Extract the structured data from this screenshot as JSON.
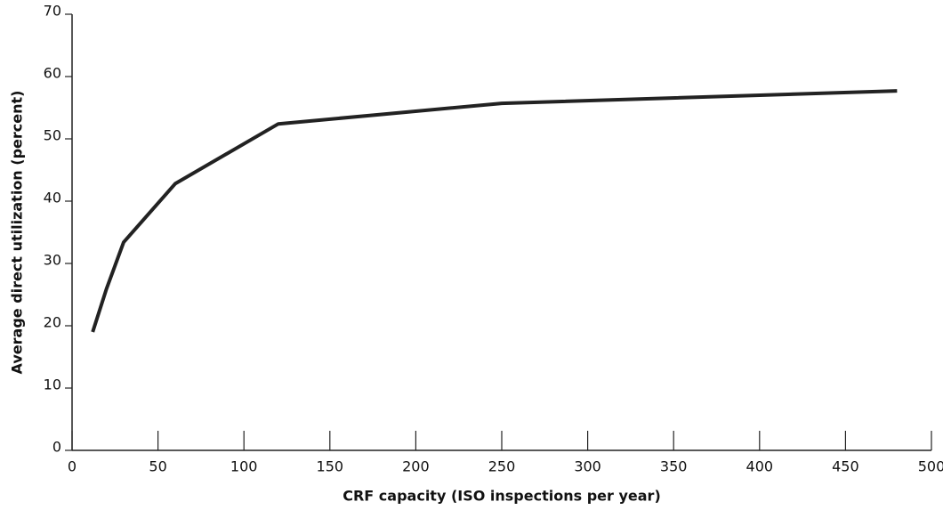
{
  "chart_data": {
    "type": "line",
    "x_label": "CRF capacity (ISO inspections per year)",
    "y_label": "Average direct utilization (percent)",
    "x": [
      12,
      20,
      30,
      60,
      120,
      250,
      480
    ],
    "series": [
      {
        "color": "#222222",
        "values": [
          19,
          25.9,
          33.4,
          42.8,
          52.4,
          55.7,
          57.7
        ]
      }
    ],
    "xlim": [
      0,
      500
    ],
    "ylim": [
      0,
      70
    ],
    "xticks": [
      0,
      50,
      100,
      150,
      200,
      250,
      300,
      350,
      400,
      450,
      500
    ],
    "yticks": [
      0,
      10,
      20,
      30,
      40,
      50,
      60,
      70
    ],
    "grid": false
  }
}
